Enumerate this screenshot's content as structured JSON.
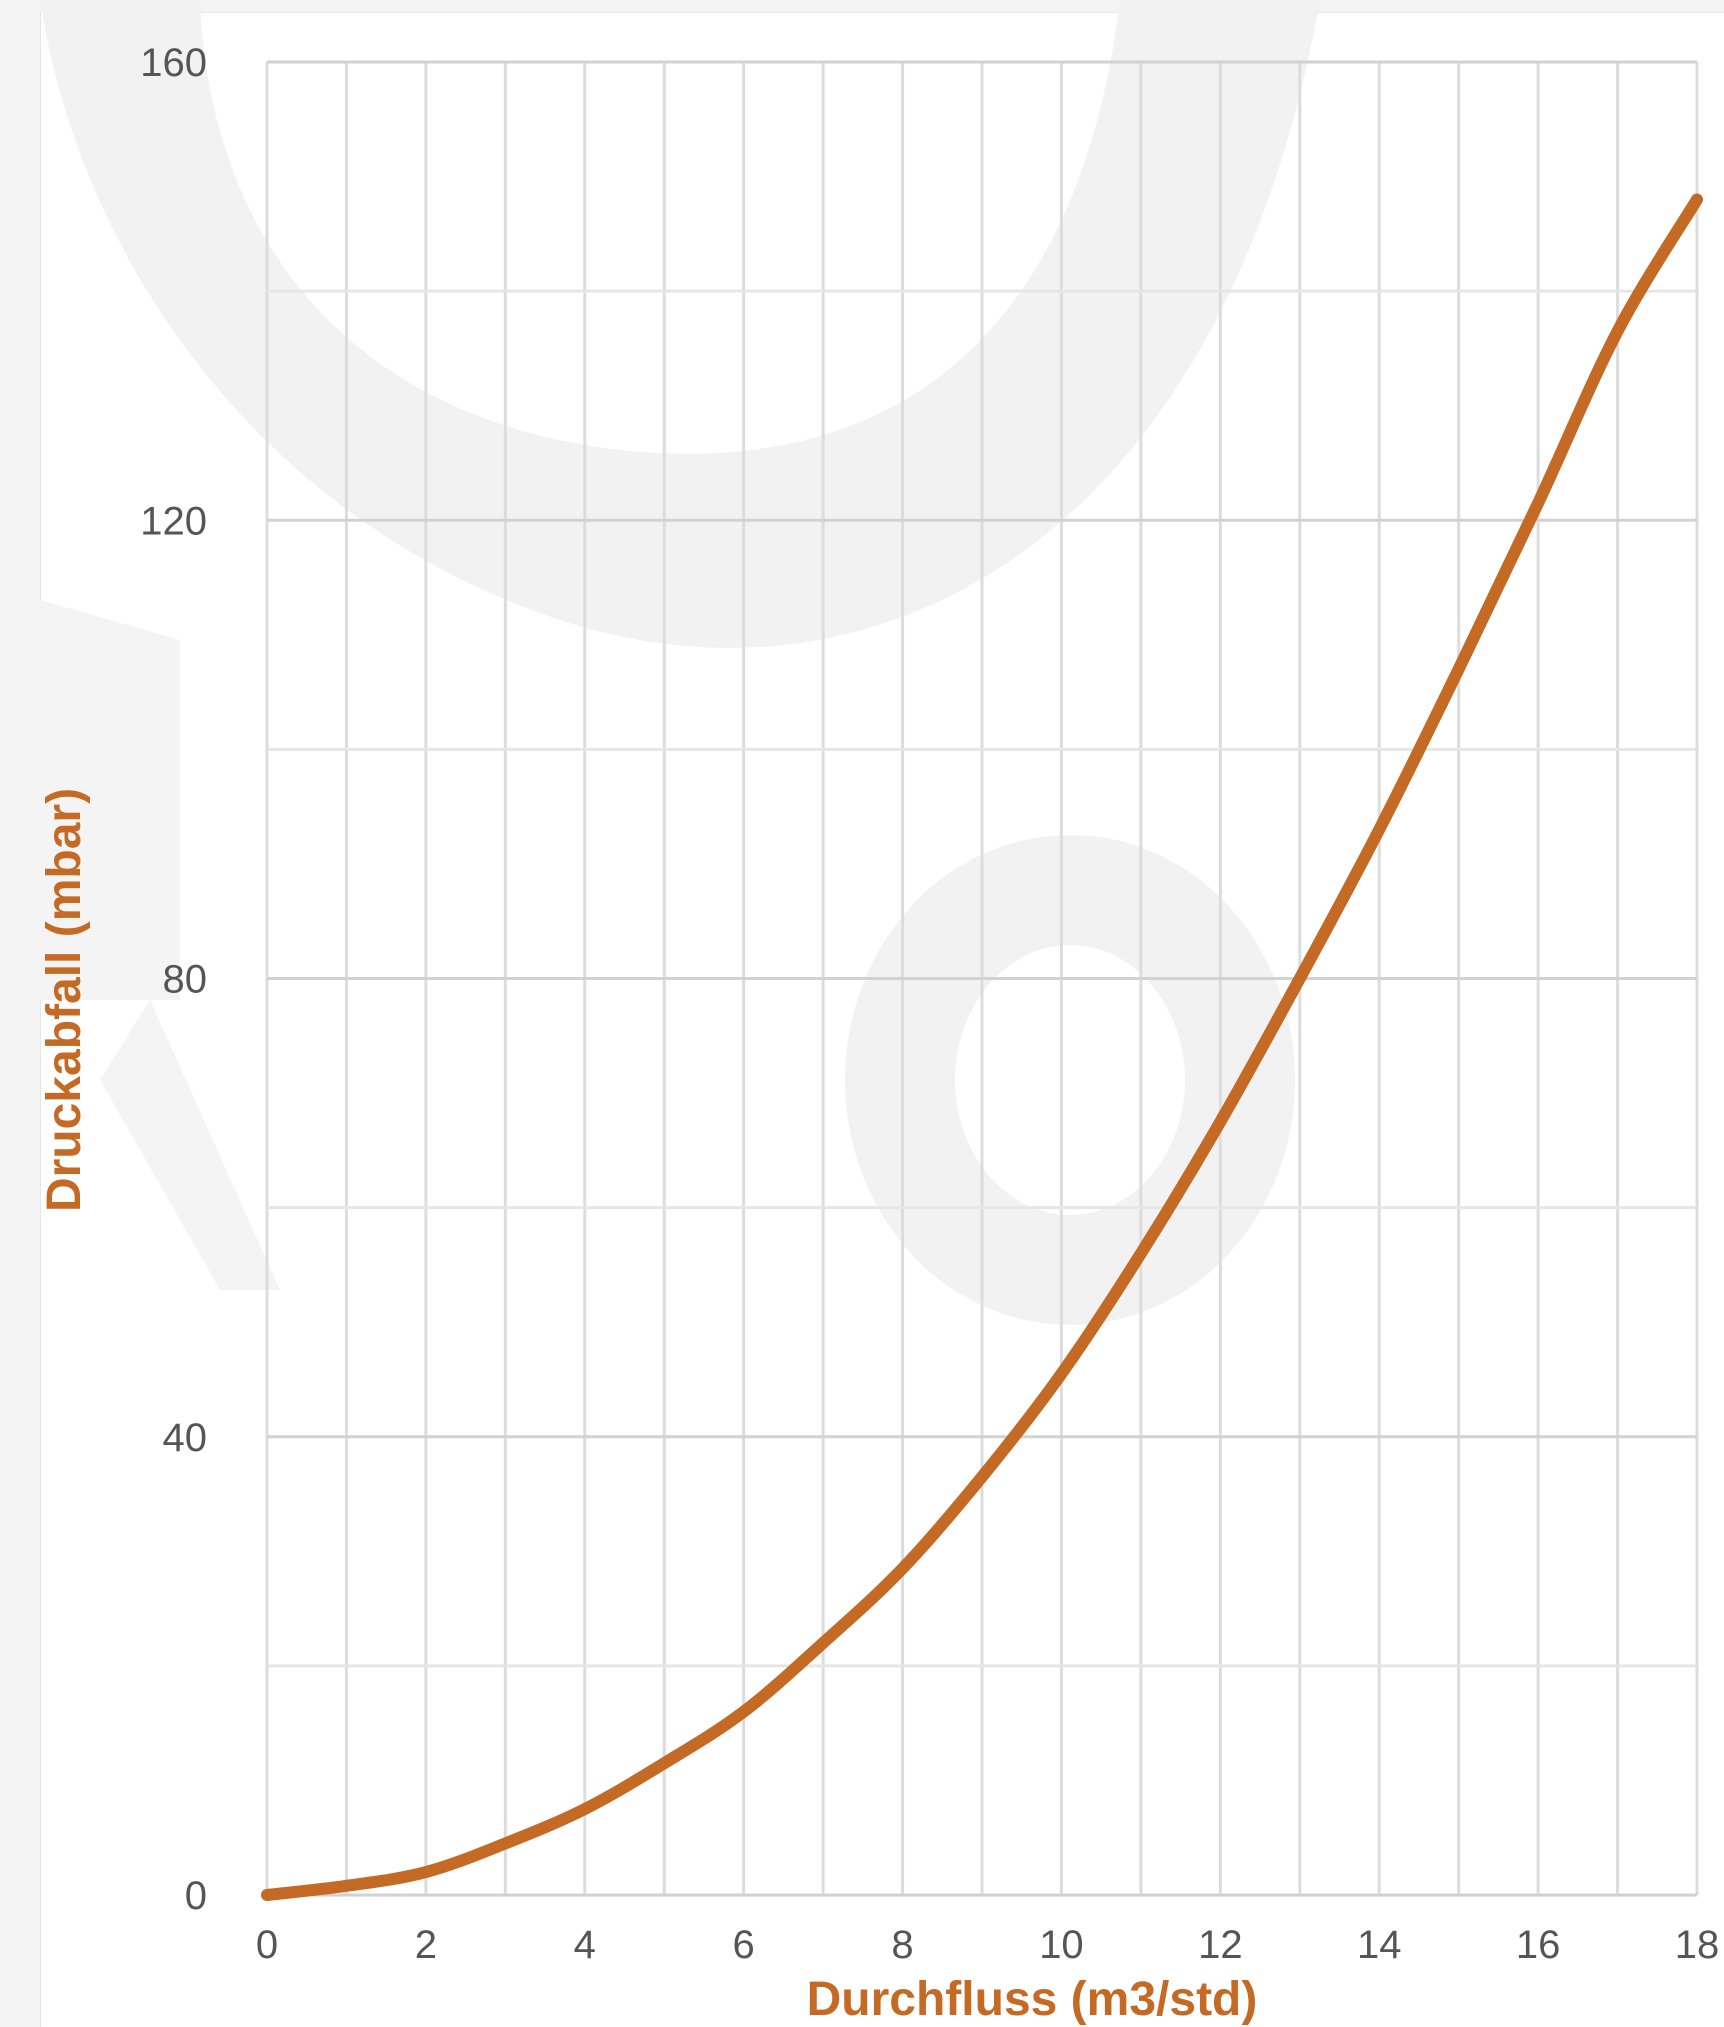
{
  "chart_data": {
    "type": "line",
    "title": "",
    "xlabel": "Durchfluss (m3/std)",
    "ylabel": "Druckabfall  (mbar)",
    "xlim": [
      0,
      18
    ],
    "ylim": [
      0,
      160
    ],
    "x_ticks": [
      0,
      2,
      4,
      6,
      8,
      10,
      12,
      14,
      16,
      18
    ],
    "y_ticks": [
      0,
      40,
      80,
      120,
      160
    ],
    "x_minor_grid_step": 1,
    "y_minor_grid_step": 20,
    "grid": true,
    "legend": "none",
    "series": [
      {
        "color": "#C46A25",
        "x": [
          0,
          1,
          2,
          3,
          4,
          5,
          6,
          7,
          8,
          9,
          10,
          11,
          12,
          13,
          14,
          15,
          16,
          17,
          18
        ],
        "y": [
          0,
          0.8,
          2,
          4.5,
          7.5,
          11.5,
          16,
          22,
          28.5,
          36.5,
          45.5,
          56,
          67.5,
          80,
          93,
          107,
          121.5,
          136.5,
          148
        ]
      }
    ]
  },
  "colors": {
    "axis_title": "#C46A25",
    "tick_label": "#555555",
    "grid": "#dcdcdc",
    "watermark": "#f1f1f1"
  }
}
